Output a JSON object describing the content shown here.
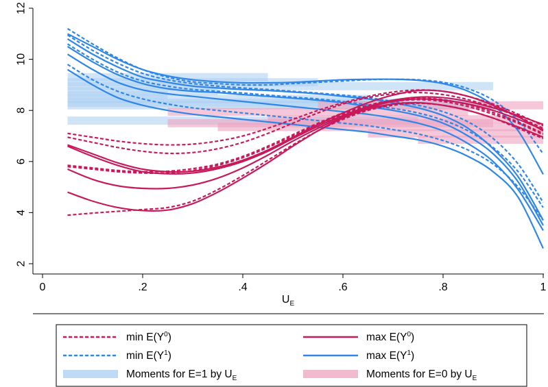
{
  "chart_data": {
    "type": "line",
    "xlabel_main": "U",
    "xlabel_sub": "E",
    "ylabel": "",
    "xlim": [
      0,
      1
    ],
    "ylim": [
      2,
      12
    ],
    "x_ticks": [
      0,
      0.2,
      0.4,
      0.6,
      0.8,
      1
    ],
    "x_tick_labels": [
      "0",
      ".2",
      ".4",
      ".6",
      ".8",
      "1"
    ],
    "y_ticks": [
      2,
      4,
      6,
      8,
      10,
      12
    ],
    "y_tick_labels": [
      "2",
      "4",
      "6",
      "8",
      "10",
      "12"
    ],
    "grid": false,
    "legend_placement": "bottom",
    "colors": {
      "red": "#c8195a",
      "blue": "#2e86e6",
      "blue_band": "#aacdf2",
      "pink_band": "#eda3bf"
    },
    "legend": [
      {
        "main": "min E(Y",
        "sup": "0",
        "tail": ")",
        "sub": "",
        "style": "dash",
        "color": "red"
      },
      {
        "main": "max E(Y",
        "sup": "0",
        "tail": ")",
        "sub": "",
        "style": "solid",
        "color": "red"
      },
      {
        "main": "min E(Y",
        "sup": "1",
        "tail": ")",
        "sub": "",
        "style": "dash",
        "color": "blue"
      },
      {
        "main": "max E(Y",
        "sup": "1",
        "tail": ")",
        "sub": "",
        "style": "solid",
        "color": "blue"
      },
      {
        "main": "Moments for E=1 by U",
        "sup": "",
        "tail": "",
        "sub": "E",
        "style": "band",
        "color": "blue_band"
      },
      {
        "main": "Moments for E=0 by U",
        "sup": "",
        "tail": "",
        "sub": "E",
        "style": "band",
        "color": "pink_band"
      }
    ],
    "moment_bands": {
      "e1": [
        {
          "x0": 0.05,
          "x1": 0.45,
          "y": 9.3
        },
        {
          "x0": 0.05,
          "x1": 0.55,
          "y": 9.1
        },
        {
          "x0": 0.05,
          "x1": 0.9,
          "y": 8.95
        },
        {
          "x0": 0.05,
          "x1": 0.35,
          "y": 8.75
        },
        {
          "x0": 0.05,
          "x1": 0.25,
          "y": 8.6
        },
        {
          "x0": 0.05,
          "x1": 0.65,
          "y": 8.45
        },
        {
          "x0": 0.05,
          "x1": 0.85,
          "y": 8.3
        },
        {
          "x0": 0.05,
          "x1": 0.9,
          "y": 8.2
        },
        {
          "x0": 0.05,
          "x1": 0.75,
          "y": 7.6
        }
      ],
      "e0": [
        {
          "x0": 0.25,
          "x1": 0.85,
          "y": 7.95
        },
        {
          "x0": 0.45,
          "x1": 0.95,
          "y": 7.65
        },
        {
          "x0": 0.35,
          "x1": 1.0,
          "y": 7.35
        },
        {
          "x0": 0.25,
          "x1": 0.9,
          "y": 7.5
        },
        {
          "x0": 0.55,
          "x1": 1.0,
          "y": 8.2
        },
        {
          "x0": 0.65,
          "x1": 1.0,
          "y": 7.1
        },
        {
          "x0": 0.75,
          "x1": 1.0,
          "y": 6.85
        }
      ]
    },
    "x": [
      0.05,
      0.1,
      0.15,
      0.2,
      0.25,
      0.3,
      0.35,
      0.4,
      0.45,
      0.5,
      0.55,
      0.6,
      0.65,
      0.7,
      0.75,
      0.8,
      0.85,
      0.9,
      0.95,
      1.0
    ],
    "series": [
      {
        "group": "maxY1",
        "color": "blue",
        "dash": false,
        "values": [
          11.0,
          10.5,
          10.0,
          9.6,
          9.35,
          9.2,
          9.12,
          9.08,
          9.08,
          9.1,
          9.15,
          9.2,
          9.22,
          9.22,
          9.18,
          9.05,
          8.75,
          8.2,
          7.2,
          5.5
        ]
      },
      {
        "group": "maxY1",
        "color": "blue",
        "dash": false,
        "values": [
          10.8,
          10.2,
          9.7,
          9.3,
          9.1,
          8.95,
          8.88,
          8.82,
          8.78,
          8.72,
          8.65,
          8.55,
          8.45,
          8.3,
          8.1,
          7.8,
          7.3,
          6.5,
          5.4,
          3.7
        ]
      },
      {
        "group": "maxY1",
        "color": "blue",
        "dash": false,
        "values": [
          10.5,
          9.9,
          9.4,
          9.05,
          8.85,
          8.75,
          8.7,
          8.62,
          8.55,
          8.48,
          8.4,
          8.3,
          8.15,
          8.0,
          7.8,
          7.5,
          7.0,
          6.3,
          5.2,
          3.5
        ]
      },
      {
        "group": "maxY1",
        "color": "blue",
        "dash": false,
        "values": [
          10.2,
          9.6,
          9.1,
          8.8,
          8.65,
          8.55,
          8.45,
          8.35,
          8.25,
          8.15,
          8.05,
          7.95,
          7.85,
          7.7,
          7.5,
          7.2,
          6.7,
          6.0,
          4.9,
          3.3
        ]
      },
      {
        "group": "maxY1",
        "color": "blue",
        "dash": false,
        "values": [
          9.6,
          9.0,
          8.5,
          8.2,
          8.0,
          7.85,
          7.75,
          7.65,
          7.55,
          7.45,
          7.35,
          7.25,
          7.15,
          7.0,
          6.85,
          6.6,
          6.2,
          5.6,
          4.6,
          2.6
        ]
      },
      {
        "group": "minY1",
        "color": "blue",
        "dash": true,
        "values": [
          11.2,
          10.6,
          10.05,
          9.6,
          9.3,
          9.12,
          9.05,
          9.0,
          9.0,
          9.05,
          9.1,
          9.15,
          9.2,
          9.22,
          9.2,
          9.1,
          8.85,
          8.4,
          7.6,
          6.3
        ]
      },
      {
        "group": "minY1",
        "color": "blue",
        "dash": true,
        "values": [
          10.95,
          10.35,
          9.85,
          9.45,
          9.2,
          9.05,
          8.95,
          8.88,
          8.82,
          8.75,
          8.68,
          8.6,
          8.5,
          8.35,
          8.2,
          7.95,
          7.55,
          6.9,
          5.9,
          4.4
        ]
      },
      {
        "group": "minY1",
        "color": "blue",
        "dash": true,
        "values": [
          10.6,
          10.0,
          9.5,
          9.15,
          8.95,
          8.82,
          8.75,
          8.68,
          8.6,
          8.52,
          8.45,
          8.35,
          8.22,
          8.08,
          7.9,
          7.62,
          7.2,
          6.55,
          5.6,
          4.2
        ]
      },
      {
        "group": "minY1",
        "color": "blue",
        "dash": true,
        "values": [
          9.8,
          9.2,
          8.75,
          8.45,
          8.25,
          8.1,
          8.0,
          7.9,
          7.8,
          7.7,
          7.6,
          7.5,
          7.4,
          7.25,
          7.08,
          6.82,
          6.45,
          5.9,
          5.0,
          3.7
        ]
      },
      {
        "group": "maxY0",
        "color": "red",
        "dash": false,
        "values": [
          6.65,
          6.3,
          5.95,
          5.7,
          5.6,
          5.62,
          5.78,
          6.05,
          6.45,
          6.95,
          7.45,
          7.9,
          8.3,
          8.6,
          8.78,
          8.75,
          8.55,
          8.2,
          7.75,
          7.2
        ]
      },
      {
        "group": "maxY0",
        "color": "red",
        "dash": false,
        "values": [
          6.6,
          6.2,
          5.85,
          5.6,
          5.52,
          5.55,
          5.72,
          6.0,
          6.4,
          6.9,
          7.38,
          7.8,
          8.15,
          8.4,
          8.52,
          8.5,
          8.35,
          8.1,
          7.8,
          7.45
        ]
      },
      {
        "group": "maxY0",
        "color": "red",
        "dash": false,
        "values": [
          5.7,
          5.3,
          5.05,
          4.95,
          4.95,
          5.08,
          5.35,
          5.75,
          6.25,
          6.8,
          7.3,
          7.75,
          8.1,
          8.35,
          8.45,
          8.4,
          8.25,
          8.0,
          7.65,
          7.25
        ]
      },
      {
        "group": "maxY0",
        "color": "red",
        "dash": false,
        "values": [
          4.8,
          4.45,
          4.2,
          4.08,
          4.1,
          4.35,
          4.8,
          5.35,
          5.95,
          6.6,
          7.2,
          7.7,
          8.05,
          8.25,
          8.3,
          8.2,
          8.0,
          7.7,
          7.35,
          6.95
        ]
      },
      {
        "group": "minY0",
        "color": "red",
        "dash": true,
        "values": [
          7.1,
          6.95,
          6.8,
          6.7,
          6.65,
          6.68,
          6.8,
          7.0,
          7.3,
          7.65,
          8.0,
          8.3,
          8.55,
          8.72,
          8.8,
          8.75,
          8.55,
          8.25,
          7.85,
          7.4
        ]
      },
      {
        "group": "minY0",
        "color": "red",
        "dash": true,
        "values": [
          6.95,
          6.75,
          6.55,
          6.4,
          6.32,
          6.35,
          6.5,
          6.75,
          7.1,
          7.5,
          7.9,
          8.25,
          8.5,
          8.65,
          8.7,
          8.62,
          8.42,
          8.12,
          7.75,
          7.3
        ]
      },
      {
        "group": "minY0",
        "color": "red",
        "dash": true,
        "values": [
          5.85,
          5.75,
          5.65,
          5.6,
          5.62,
          5.72,
          5.9,
          6.2,
          6.6,
          7.05,
          7.5,
          7.9,
          8.2,
          8.4,
          8.48,
          8.42,
          8.22,
          7.92,
          7.55,
          7.1
        ]
      },
      {
        "group": "minY0",
        "color": "red",
        "dash": true,
        "values": [
          5.8,
          5.7,
          5.6,
          5.55,
          5.55,
          5.65,
          5.85,
          6.15,
          6.55,
          7.0,
          7.45,
          7.85,
          8.15,
          8.35,
          8.42,
          8.35,
          8.15,
          7.85,
          7.5,
          7.05
        ]
      },
      {
        "group": "minY0",
        "color": "red",
        "dash": true,
        "values": [
          3.9,
          3.98,
          4.05,
          4.12,
          4.2,
          4.45,
          4.9,
          5.45,
          6.05,
          6.65,
          7.2,
          7.65,
          8.0,
          8.2,
          8.28,
          8.2,
          8.0,
          7.7,
          7.3,
          6.9
        ]
      }
    ]
  }
}
